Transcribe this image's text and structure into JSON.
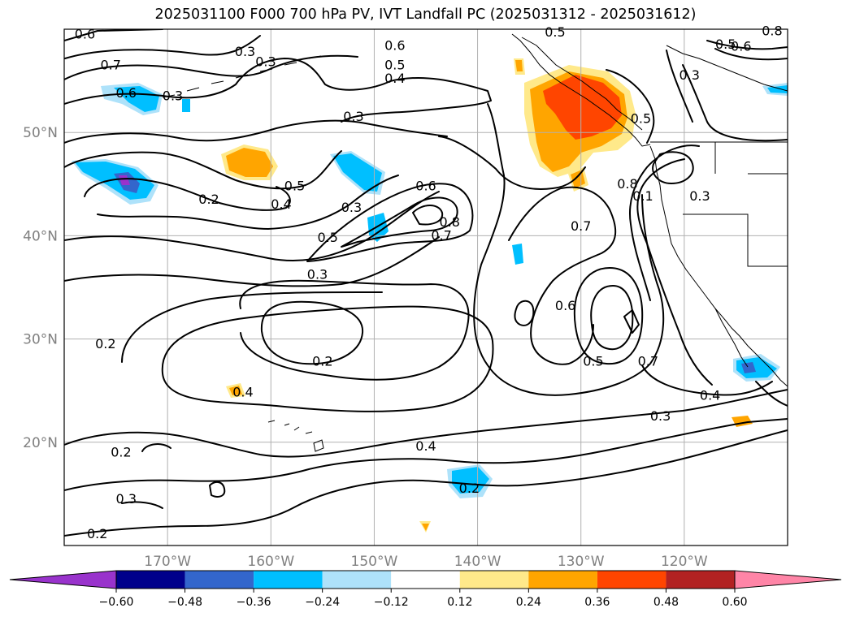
{
  "title": "2025031100 F000 700 hPa PV, IVT Landfall PC (2025031312 - 2025031612)",
  "map": {
    "lon_range": [
      -180,
      -110
    ],
    "lat_range": [
      10,
      60
    ],
    "lat_ticks": [
      {
        "value": 50,
        "label": "50°N"
      },
      {
        "value": 40,
        "label": "40°N"
      },
      {
        "value": 30,
        "label": "30°N"
      },
      {
        "value": 20,
        "label": "20°N"
      }
    ],
    "lon_ticks": [
      {
        "value": -170,
        "label": "170°W"
      },
      {
        "value": -160,
        "label": "160°W"
      },
      {
        "value": -150,
        "label": "150°W"
      },
      {
        "value": -140,
        "label": "140°W"
      },
      {
        "value": -130,
        "label": "130°W"
      },
      {
        "value": -120,
        "label": "120°W"
      }
    ],
    "gridlines": true,
    "contour_variable": "700 hPa PV",
    "contour_labels": [
      {
        "text": "0.6",
        "lon": -178,
        "lat": 59.5
      },
      {
        "text": "0.7",
        "lon": -175.5,
        "lat": 56.5
      },
      {
        "text": "0.6",
        "lon": -174,
        "lat": 53.8
      },
      {
        "text": "0.3",
        "lon": -169.5,
        "lat": 53.5
      },
      {
        "text": "0.3",
        "lon": -162.5,
        "lat": 57.8
      },
      {
        "text": "0.3",
        "lon": -160.5,
        "lat": 56.8
      },
      {
        "text": "0.6",
        "lon": -148,
        "lat": 58.4
      },
      {
        "text": "0.5",
        "lon": -148,
        "lat": 56.5
      },
      {
        "text": "0.4",
        "lon": -148,
        "lat": 55.2
      },
      {
        "text": "0.5",
        "lon": -132.5,
        "lat": 59.7
      },
      {
        "text": "0.5",
        "lon": -116,
        "lat": 58.5
      },
      {
        "text": "0.6",
        "lon": -114.5,
        "lat": 58.3
      },
      {
        "text": "0.8",
        "lon": -111.5,
        "lat": 59.8
      },
      {
        "text": "0.3",
        "lon": -119.5,
        "lat": 55.5
      },
      {
        "text": "0.5",
        "lon": -124.2,
        "lat": 51.3
      },
      {
        "text": "0.3",
        "lon": -152,
        "lat": 51.5
      },
      {
        "text": "0.5",
        "lon": -157.7,
        "lat": 44.8
      },
      {
        "text": "0.2",
        "lon": -166,
        "lat": 43.5
      },
      {
        "text": "0.4",
        "lon": -159,
        "lat": 43
      },
      {
        "text": "0.3",
        "lon": -152.2,
        "lat": 42.7
      },
      {
        "text": "0.6",
        "lon": -145,
        "lat": 44.8
      },
      {
        "text": "0.8",
        "lon": -142.7,
        "lat": 41.3
      },
      {
        "text": "0.7",
        "lon": -143.5,
        "lat": 40
      },
      {
        "text": "0.5",
        "lon": -154.5,
        "lat": 39.8
      },
      {
        "text": "0.7",
        "lon": -130,
        "lat": 40.9
      },
      {
        "text": "0.8",
        "lon": -125.5,
        "lat": 45
      },
      {
        "text": "0.1",
        "lon": -124,
        "lat": 43.8
      },
      {
        "text": "0.3",
        "lon": -118.5,
        "lat": 43.8
      },
      {
        "text": "0.3",
        "lon": -155.5,
        "lat": 36.2
      },
      {
        "text": "0.6",
        "lon": -131.5,
        "lat": 33.2
      },
      {
        "text": "0.2",
        "lon": -176,
        "lat": 29.5
      },
      {
        "text": "0.2",
        "lon": -155,
        "lat": 27.8
      },
      {
        "text": "0.5",
        "lon": -128.8,
        "lat": 27.8
      },
      {
        "text": "0.7",
        "lon": -123.5,
        "lat": 27.8
      },
      {
        "text": "0.4",
        "lon": -162.7,
        "lat": 24.8
      },
      {
        "text": "0.4",
        "lon": -117.5,
        "lat": 24.5
      },
      {
        "text": "0.3",
        "lon": -122.3,
        "lat": 22.5
      },
      {
        "text": "0.4",
        "lon": -145,
        "lat": 19.6
      },
      {
        "text": "0.2",
        "lon": -140.8,
        "lat": 15.5
      },
      {
        "text": "0.2",
        "lon": -174.5,
        "lat": 19
      },
      {
        "text": "0.3",
        "lon": -174,
        "lat": 14.5
      },
      {
        "text": "0.2",
        "lon": -176.8,
        "lat": 11.1
      }
    ]
  },
  "colorbar": {
    "ticks": [
      "−0.60",
      "−0.48",
      "−0.36",
      "−0.24",
      "−0.12",
      "0.12",
      "0.24",
      "0.36",
      "0.48",
      "0.60"
    ],
    "colors": [
      "#9933cc",
      "#00008b",
      "#3366cc",
      "#00bfff",
      "#aee2fa",
      "#ffffff",
      "#ffe98a",
      "#ffa500",
      "#ff4500",
      "#b22222",
      "#ff85a7",
      "#ff85a7"
    ]
  }
}
